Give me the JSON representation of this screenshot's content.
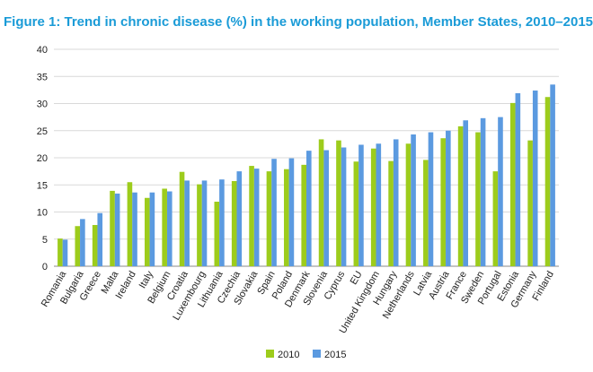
{
  "title": "Figure 1: Trend in chronic disease (%) in the working population, Member States, 2010–2015",
  "chart_data": {
    "type": "bar",
    "title": "Figure 1: Trend in chronic disease (%) in the working population, Member States, 2010–2015",
    "xlabel": "",
    "ylabel": "",
    "ylim": [
      0,
      40
    ],
    "yticks": [
      0,
      5,
      10,
      15,
      20,
      25,
      30,
      35,
      40
    ],
    "grid": "horizontal",
    "legend": "bottom-center",
    "categories": [
      "Romania",
      "Bulgaria",
      "Greece",
      "Malta",
      "Ireland",
      "Italy",
      "Belgium",
      "Croatia",
      "Luxembourg",
      "Lithuania",
      "Czechia",
      "Slovakia",
      "Spain",
      "Poland",
      "Denmark",
      "Slovenia",
      "Cyprus",
      "EU",
      "United Kingdom",
      "Hungary",
      "Netherlands",
      "Latvia",
      "Austria",
      "France",
      "Sweden",
      "Portugal",
      "Estonia",
      "Germany",
      "Finland"
    ],
    "series": [
      {
        "name": "2010",
        "color": "#9dcc1c",
        "values": [
          5.1,
          7.4,
          7.6,
          13.9,
          15.5,
          12.6,
          14.3,
          17.4,
          15.1,
          11.9,
          15.7,
          18.5,
          17.5,
          17.9,
          18.7,
          23.4,
          23.2,
          19.3,
          21.7,
          19.4,
          22.6,
          19.6,
          23.6,
          25.8,
          24.7,
          17.5,
          30.1,
          23.2,
          31.2
        ]
      },
      {
        "name": "2015",
        "color": "#5b9ae0",
        "values": [
          4.9,
          8.7,
          9.8,
          13.4,
          13.6,
          13.6,
          13.8,
          15.8,
          15.8,
          16.0,
          17.5,
          18.0,
          19.8,
          19.9,
          21.3,
          21.4,
          21.9,
          22.4,
          22.6,
          23.4,
          24.3,
          24.7,
          25.0,
          26.9,
          27.3,
          27.5,
          31.9,
          32.4,
          33.5
        ]
      }
    ]
  }
}
